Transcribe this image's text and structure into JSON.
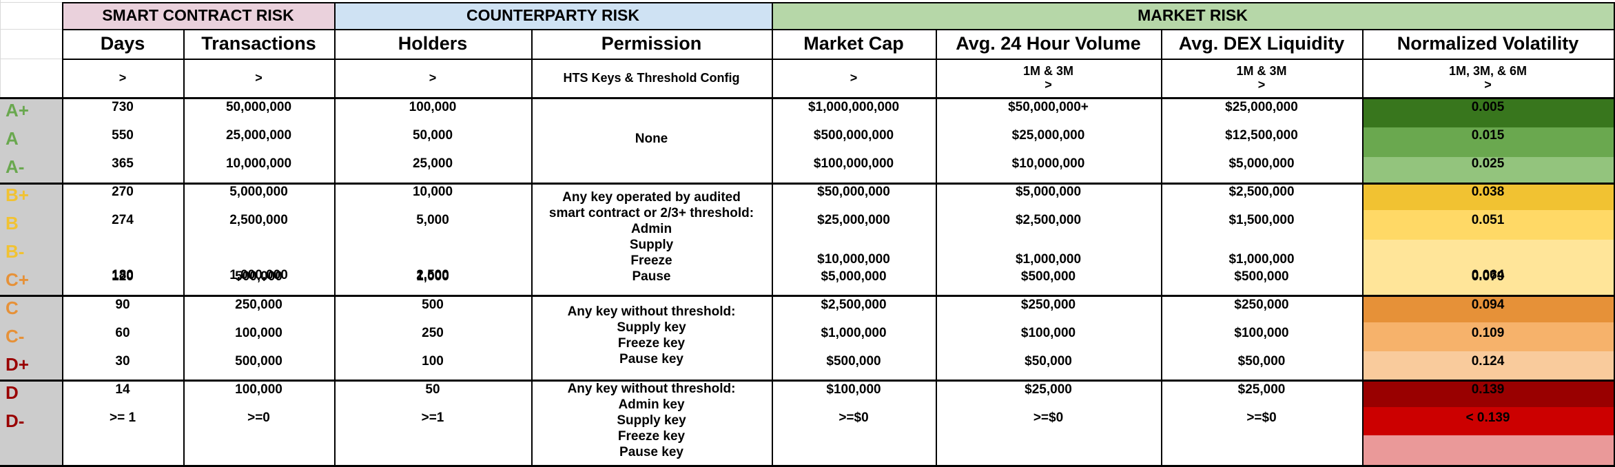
{
  "groups": [
    {
      "label": "SMART CONTRACT RISK",
      "color": "#ead1dc"
    },
    {
      "label": "COUNTERPARTY RISK",
      "color": "#cfe2f3"
    },
    {
      "label": "MARKET RISK",
      "color": "#b6d7a8"
    }
  ],
  "headers": [
    "Days",
    "Transactions",
    "Holders",
    "Permission",
    "Market Cap",
    "Avg. 24 Hour Volume",
    "Avg. DEX Liquidity",
    "Normalized Volatility"
  ],
  "conditions": [
    ">",
    ">",
    ">",
    "HTS Keys & Threshold Config",
    ">",
    "1M & 3M\n>",
    "1M & 3M\n>",
    "1M, 3M, & 6M\n>"
  ],
  "grades": [
    {
      "label": "A+",
      "color": "#6aa84f"
    },
    {
      "label": "A",
      "color": "#6aa84f"
    },
    {
      "label": "A-",
      "color": "#6aa84f"
    },
    {
      "label": "B+",
      "color": "#f1c232"
    },
    {
      "label": "B",
      "color": "#f1c232"
    },
    {
      "label": "B-",
      "color": "#f1c232"
    },
    {
      "label": "C+",
      "color": "#e69138"
    },
    {
      "label": "C",
      "color": "#e69138"
    },
    {
      "label": "C-",
      "color": "#e69138"
    },
    {
      "label": "D+",
      "color": "#990000"
    },
    {
      "label": "D",
      "color": "#990000"
    },
    {
      "label": "D-",
      "color": "#990000"
    }
  ],
  "rows": [
    [
      "730",
      "50,000,000",
      "100,000",
      "$1,000,000,000",
      "$50,000,000+",
      "$25,000,000",
      "0.005"
    ],
    [
      "550",
      "25,000,000",
      "50,000",
      "$500,000,000",
      "$25,000,000",
      "$12,500,000",
      "0.015"
    ],
    [
      "365",
      "10,000,000",
      "25,000",
      "$100,000,000",
      "$10,000,000",
      "$5,000,000",
      "0.025"
    ],
    [
      "270",
      "5,000,000",
      "10,000",
      "$50,000,000",
      "$5,000,000",
      "$2,500,000",
      "0.038"
    ],
    [
      "274",
      "2,500,000",
      "5,000",
      "$25,000,000",
      "$2,500,000",
      "$1,500,000",
      "0.051"
    ],
    [
      "180",
      "1,000,000",
      "2,500",
      "$10,000,000",
      "$1,000,000",
      "$1,000,000",
      "0.064"
    ],
    [
      "120",
      "500,000",
      "1,000",
      "$5,000,000",
      "$500,000",
      "$500,000",
      "0.079"
    ],
    [
      "90",
      "250,000",
      "500",
      "$2,500,000",
      "$250,000",
      "$250,000",
      "0.094"
    ],
    [
      "60",
      "100,000",
      "250",
      "$1,000,000",
      "$100,000",
      "$100,000",
      "0.109"
    ],
    [
      "30",
      "500,000",
      "100",
      "$500,000",
      "$50,000",
      "$50,000",
      "0.124"
    ],
    [
      "14",
      "100,000",
      "50",
      "$100,000",
      "$25,000",
      "$25,000",
      "0.139"
    ],
    [
      ">= 1",
      ">=0",
      ">=1",
      ">=$0",
      ">=$0",
      ">=$0",
      "< 0.139"
    ]
  ],
  "permissions": [
    {
      "lines": [
        "None"
      ]
    },
    {
      "lines": [
        "Any key operated by audited",
        "smart contract or 2/3+ threshold:",
        "Admin",
        "Supply",
        "Freeze",
        "Pause"
      ]
    },
    {
      "lines": [
        "Any key without threshold:",
        "Supply key",
        "Freeze key",
        "Pause key"
      ]
    },
    {
      "lines": [
        "Any key without threshold:",
        "Admin key",
        "Supply key",
        "Freeze key",
        "Pause key"
      ]
    }
  ],
  "volatility_colors": [
    "#38761d",
    "#6aa84f",
    "#93c47d",
    "#f1c232",
    "#ffd966",
    "#ffe599",
    "#e69138",
    "#f6b26b",
    "#f9cb9c",
    "#990000",
    "#cc0000",
    "#ea9999"
  ]
}
